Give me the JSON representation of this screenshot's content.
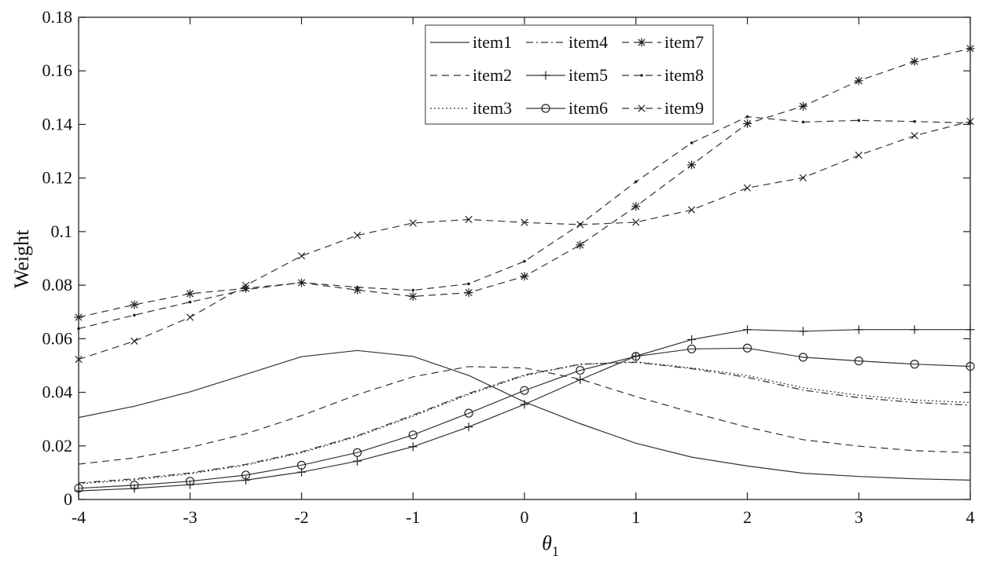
{
  "chart_data": {
    "type": "line",
    "xlabel": "θ",
    "xlabel_subscript": "1",
    "ylabel": "Weight",
    "xlim": [
      -4,
      4
    ],
    "ylim": [
      0,
      0.18
    ],
    "x_ticks": [
      -4,
      -3,
      -2,
      -1,
      0,
      1,
      2,
      3,
      4
    ],
    "y_ticks": [
      0,
      0.02,
      0.04,
      0.06,
      0.08,
      0.1,
      0.12,
      0.14,
      0.16,
      0.18
    ],
    "y_tick_labels": [
      "0",
      "0.02",
      "0.04",
      "0.06",
      "0.08",
      "0.1",
      "0.12",
      "0.14",
      "0.16",
      "0.18"
    ],
    "grid": false,
    "legend_position": "top-center",
    "x": [
      -4,
      -3.5,
      -3,
      -2.5,
      -2,
      -1.5,
      -1,
      -0.5,
      0,
      0.5,
      1,
      1.5,
      2,
      2.5,
      3,
      3.5,
      4
    ],
    "series": [
      {
        "name": "item1",
        "style": "solid",
        "marker": "none",
        "values": [
          0.0306,
          0.0348,
          0.0402,
          0.0467,
          0.0533,
          0.0556,
          0.0534,
          0.0463,
          0.0364,
          0.0283,
          0.021,
          0.0158,
          0.0125,
          0.0098,
          0.0086,
          0.0077,
          0.0072
        ]
      },
      {
        "name": "item2",
        "style": "dashed",
        "marker": "none",
        "values": [
          0.0132,
          0.0155,
          0.0194,
          0.0245,
          0.0313,
          0.0391,
          0.0458,
          0.0496,
          0.0491,
          0.0449,
          0.0384,
          0.0325,
          0.027,
          0.0223,
          0.0199,
          0.0182,
          0.0175
        ]
      },
      {
        "name": "item3",
        "style": "dotted",
        "marker": "none",
        "values": [
          0.0059,
          0.0073,
          0.0096,
          0.0128,
          0.0174,
          0.0235,
          0.0311,
          0.0392,
          0.0462,
          0.0504,
          0.0514,
          0.0491,
          0.0463,
          0.0417,
          0.0389,
          0.0371,
          0.0362
        ]
      },
      {
        "name": "item4",
        "style": "dashdot",
        "marker": "none",
        "values": [
          0.0062,
          0.0077,
          0.0099,
          0.0131,
          0.0178,
          0.0238,
          0.0315,
          0.0396,
          0.0465,
          0.0505,
          0.0512,
          0.0488,
          0.0456,
          0.0408,
          0.038,
          0.0362,
          0.0352
        ]
      },
      {
        "name": "item5",
        "style": "solid",
        "marker": "plus",
        "values": [
          0.0032,
          0.0041,
          0.0055,
          0.0072,
          0.0102,
          0.0143,
          0.0197,
          0.0271,
          0.0355,
          0.0447,
          0.0535,
          0.0597,
          0.0634,
          0.0628,
          0.0634,
          0.0634,
          0.0634
        ]
      },
      {
        "name": "item6",
        "style": "solid",
        "marker": "circle",
        "values": [
          0.0042,
          0.0053,
          0.0068,
          0.0091,
          0.0128,
          0.0175,
          0.0241,
          0.0322,
          0.0407,
          0.0482,
          0.0534,
          0.0562,
          0.0565,
          0.0531,
          0.0517,
          0.0505,
          0.0497
        ]
      },
      {
        "name": "item7",
        "style": "dashed",
        "marker": "asterisk",
        "values": [
          0.068,
          0.0727,
          0.0768,
          0.0788,
          0.0809,
          0.0782,
          0.0758,
          0.0772,
          0.0833,
          0.095,
          0.1094,
          0.1249,
          0.1403,
          0.1468,
          0.1563,
          0.1635,
          0.1683
        ]
      },
      {
        "name": "item8",
        "style": "dashed",
        "marker": "dot",
        "values": [
          0.0638,
          0.0688,
          0.0737,
          0.0783,
          0.081,
          0.0792,
          0.0781,
          0.0805,
          0.0889,
          0.1027,
          0.1186,
          0.1331,
          0.1429,
          0.1409,
          0.1415,
          0.1411,
          0.1405
        ]
      },
      {
        "name": "item9",
        "style": "dashed",
        "marker": "x",
        "values": [
          0.0523,
          0.0591,
          0.068,
          0.0799,
          0.0909,
          0.0986,
          0.1032,
          0.1045,
          0.1034,
          0.1026,
          0.1035,
          0.1081,
          0.1163,
          0.1201,
          0.1285,
          0.1358,
          0.1411
        ]
      }
    ]
  }
}
